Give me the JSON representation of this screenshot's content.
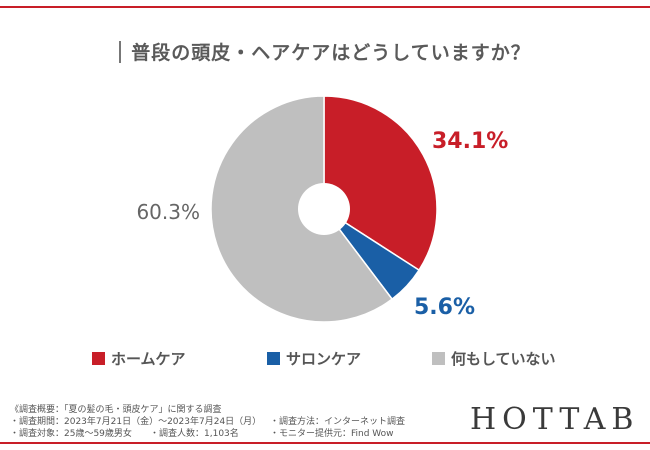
{
  "title": "普段の頭皮・ヘアケアはどうしていますか？",
  "chart_data": {
    "type": "pie",
    "donut": true,
    "start_angle": "12 o'clock, clockwise",
    "slices": [
      {
        "label": "ホームケア",
        "value": 34.1,
        "value_label": "34.1%",
        "color": "#c81e28"
      },
      {
        "label": "サロンケア",
        "value": 5.6,
        "value_label": "5.6%",
        "color": "#1a5fa6"
      },
      {
        "label": "何もしていない",
        "value": 60.3,
        "value_label": "60.3%",
        "color": "#bfbfbf"
      }
    ],
    "legend_placement": "bottom"
  },
  "notes": {
    "line1": "《調査概要：「夏の髪の毛・頭皮ケア」に関する調査",
    "line2a": "・調査期間：2023年7月21日（金）〜2023年7月24日（月）",
    "line2b": "・調査方法：インターネット調査",
    "line3a": "・調査対象：25歳〜59歳男女",
    "line3b": "・調査人数：1,103名",
    "line3c": "・モニター提供元：Find Wow"
  },
  "brand": "HOTTAB"
}
